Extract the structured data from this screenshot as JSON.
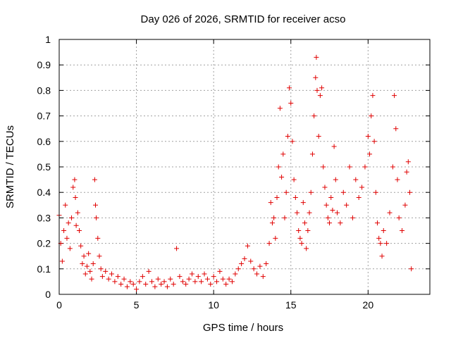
{
  "chart_data": {
    "type": "scatter",
    "title": "Day 026 of 2026, SRMTID for receiver acso",
    "xlabel": "GPS time / hours",
    "ylabel": "SRMTID / TECUs",
    "xlim": [
      0,
      24
    ],
    "ylim": [
      0,
      1
    ],
    "xticks": [
      0,
      5,
      10,
      15,
      20
    ],
    "xtick_labels": [
      "0",
      "5",
      "10",
      "15",
      "20"
    ],
    "yticks": [
      0,
      0.1,
      0.2,
      0.3,
      0.4,
      0.5,
      0.6,
      0.7,
      0.8,
      0.9,
      1
    ],
    "ytick_labels": [
      "0",
      "0.1",
      "0.2",
      "0.3",
      "0.4",
      "0.5",
      "0.6",
      "0.7",
      "0.8",
      "0.9",
      "1"
    ],
    "grid": true,
    "marker": "+",
    "color": "#e00000",
    "series": [
      {
        "name": "SRMTID",
        "points": [
          [
            0.0,
            0.31
          ],
          [
            0.1,
            0.2
          ],
          [
            0.2,
            0.13
          ],
          [
            0.3,
            0.25
          ],
          [
            0.4,
            0.35
          ],
          [
            0.5,
            0.22
          ],
          [
            0.6,
            0.28
          ],
          [
            0.7,
            0.18
          ],
          [
            0.8,
            0.3
          ],
          [
            0.9,
            0.42
          ],
          [
            1.0,
            0.45
          ],
          [
            1.05,
            0.38
          ],
          [
            1.1,
            0.27
          ],
          [
            1.2,
            0.32
          ],
          [
            1.3,
            0.25
          ],
          [
            1.4,
            0.19
          ],
          [
            1.5,
            0.12
          ],
          [
            1.6,
            0.15
          ],
          [
            1.7,
            0.08
          ],
          [
            1.8,
            0.11
          ],
          [
            1.9,
            0.16
          ],
          [
            2.0,
            0.09
          ],
          [
            2.1,
            0.06
          ],
          [
            2.2,
            0.12
          ],
          [
            2.3,
            0.45
          ],
          [
            2.35,
            0.35
          ],
          [
            2.4,
            0.3
          ],
          [
            2.5,
            0.22
          ],
          [
            2.6,
            0.15
          ],
          [
            2.7,
            0.1
          ],
          [
            2.8,
            0.07
          ],
          [
            3.0,
            0.09
          ],
          [
            3.2,
            0.06
          ],
          [
            3.4,
            0.08
          ],
          [
            3.6,
            0.05
          ],
          [
            3.8,
            0.07
          ],
          [
            4.0,
            0.04
          ],
          [
            4.2,
            0.06
          ],
          [
            4.4,
            0.03
          ],
          [
            4.6,
            0.05
          ],
          [
            4.8,
            0.04
          ],
          [
            5.0,
            0.02
          ],
          [
            5.2,
            0.05
          ],
          [
            5.4,
            0.07
          ],
          [
            5.6,
            0.04
          ],
          [
            5.8,
            0.09
          ],
          [
            6.0,
            0.05
          ],
          [
            6.2,
            0.03
          ],
          [
            6.4,
            0.06
          ],
          [
            6.6,
            0.04
          ],
          [
            6.8,
            0.05
          ],
          [
            7.0,
            0.03
          ],
          [
            7.2,
            0.06
          ],
          [
            7.4,
            0.04
          ],
          [
            7.6,
            0.18
          ],
          [
            7.8,
            0.07
          ],
          [
            8.0,
            0.05
          ],
          [
            8.2,
            0.04
          ],
          [
            8.4,
            0.06
          ],
          [
            8.6,
            0.08
          ],
          [
            8.8,
            0.05
          ],
          [
            9.0,
            0.07
          ],
          [
            9.2,
            0.05
          ],
          [
            9.4,
            0.08
          ],
          [
            9.6,
            0.06
          ],
          [
            9.8,
            0.04
          ],
          [
            10.0,
            0.07
          ],
          [
            10.2,
            0.05
          ],
          [
            10.4,
            0.09
          ],
          [
            10.6,
            0.06
          ],
          [
            10.8,
            0.04
          ],
          [
            11.0,
            0.06
          ],
          [
            11.2,
            0.05
          ],
          [
            11.4,
            0.08
          ],
          [
            11.6,
            0.1
          ],
          [
            11.8,
            0.12
          ],
          [
            12.0,
            0.14
          ],
          [
            12.2,
            0.19
          ],
          [
            12.4,
            0.13
          ],
          [
            12.6,
            0.1
          ],
          [
            12.8,
            0.08
          ],
          [
            13.0,
            0.11
          ],
          [
            13.2,
            0.07
          ],
          [
            13.4,
            0.12
          ],
          [
            13.6,
            0.2
          ],
          [
            13.7,
            0.36
          ],
          [
            13.8,
            0.28
          ],
          [
            13.9,
            0.3
          ],
          [
            14.0,
            0.22
          ],
          [
            14.1,
            0.38
          ],
          [
            14.2,
            0.5
          ],
          [
            14.3,
            0.73
          ],
          [
            14.4,
            0.46
          ],
          [
            14.5,
            0.55
          ],
          [
            14.6,
            0.3
          ],
          [
            14.7,
            0.4
          ],
          [
            14.8,
            0.62
          ],
          [
            14.9,
            0.81
          ],
          [
            15.0,
            0.75
          ],
          [
            15.1,
            0.6
          ],
          [
            15.2,
            0.45
          ],
          [
            15.3,
            0.38
          ],
          [
            15.4,
            0.32
          ],
          [
            15.5,
            0.25
          ],
          [
            15.6,
            0.22
          ],
          [
            15.7,
            0.2
          ],
          [
            15.8,
            0.36
          ],
          [
            15.9,
            0.28
          ],
          [
            16.0,
            0.18
          ],
          [
            16.1,
            0.25
          ],
          [
            16.2,
            0.32
          ],
          [
            16.3,
            0.4
          ],
          [
            16.4,
            0.55
          ],
          [
            16.5,
            0.7
          ],
          [
            16.6,
            0.85
          ],
          [
            16.65,
            0.93
          ],
          [
            16.7,
            0.8
          ],
          [
            16.8,
            0.62
          ],
          [
            16.9,
            0.78
          ],
          [
            17.0,
            0.81
          ],
          [
            17.1,
            0.5
          ],
          [
            17.2,
            0.42
          ],
          [
            17.3,
            0.35
          ],
          [
            17.4,
            0.3
          ],
          [
            17.5,
            0.28
          ],
          [
            17.6,
            0.38
          ],
          [
            17.7,
            0.33
          ],
          [
            17.8,
            0.58
          ],
          [
            17.9,
            0.45
          ],
          [
            18.0,
            0.32
          ],
          [
            18.2,
            0.28
          ],
          [
            18.4,
            0.4
          ],
          [
            18.6,
            0.35
          ],
          [
            18.8,
            0.5
          ],
          [
            19.0,
            0.3
          ],
          [
            19.2,
            0.45
          ],
          [
            19.4,
            0.38
          ],
          [
            19.6,
            0.42
          ],
          [
            19.8,
            0.5
          ],
          [
            20.0,
            0.62
          ],
          [
            20.1,
            0.55
          ],
          [
            20.2,
            0.7
          ],
          [
            20.3,
            0.78
          ],
          [
            20.4,
            0.6
          ],
          [
            20.5,
            0.4
          ],
          [
            20.6,
            0.28
          ],
          [
            20.7,
            0.22
          ],
          [
            20.8,
            0.2
          ],
          [
            20.9,
            0.15
          ],
          [
            21.0,
            0.25
          ],
          [
            21.2,
            0.2
          ],
          [
            21.4,
            0.32
          ],
          [
            21.6,
            0.5
          ],
          [
            21.7,
            0.78
          ],
          [
            21.8,
            0.65
          ],
          [
            21.9,
            0.45
          ],
          [
            22.0,
            0.3
          ],
          [
            22.2,
            0.25
          ],
          [
            22.4,
            0.35
          ],
          [
            22.5,
            0.48
          ],
          [
            22.6,
            0.52
          ],
          [
            22.7,
            0.4
          ],
          [
            22.8,
            0.1
          ]
        ]
      }
    ]
  }
}
